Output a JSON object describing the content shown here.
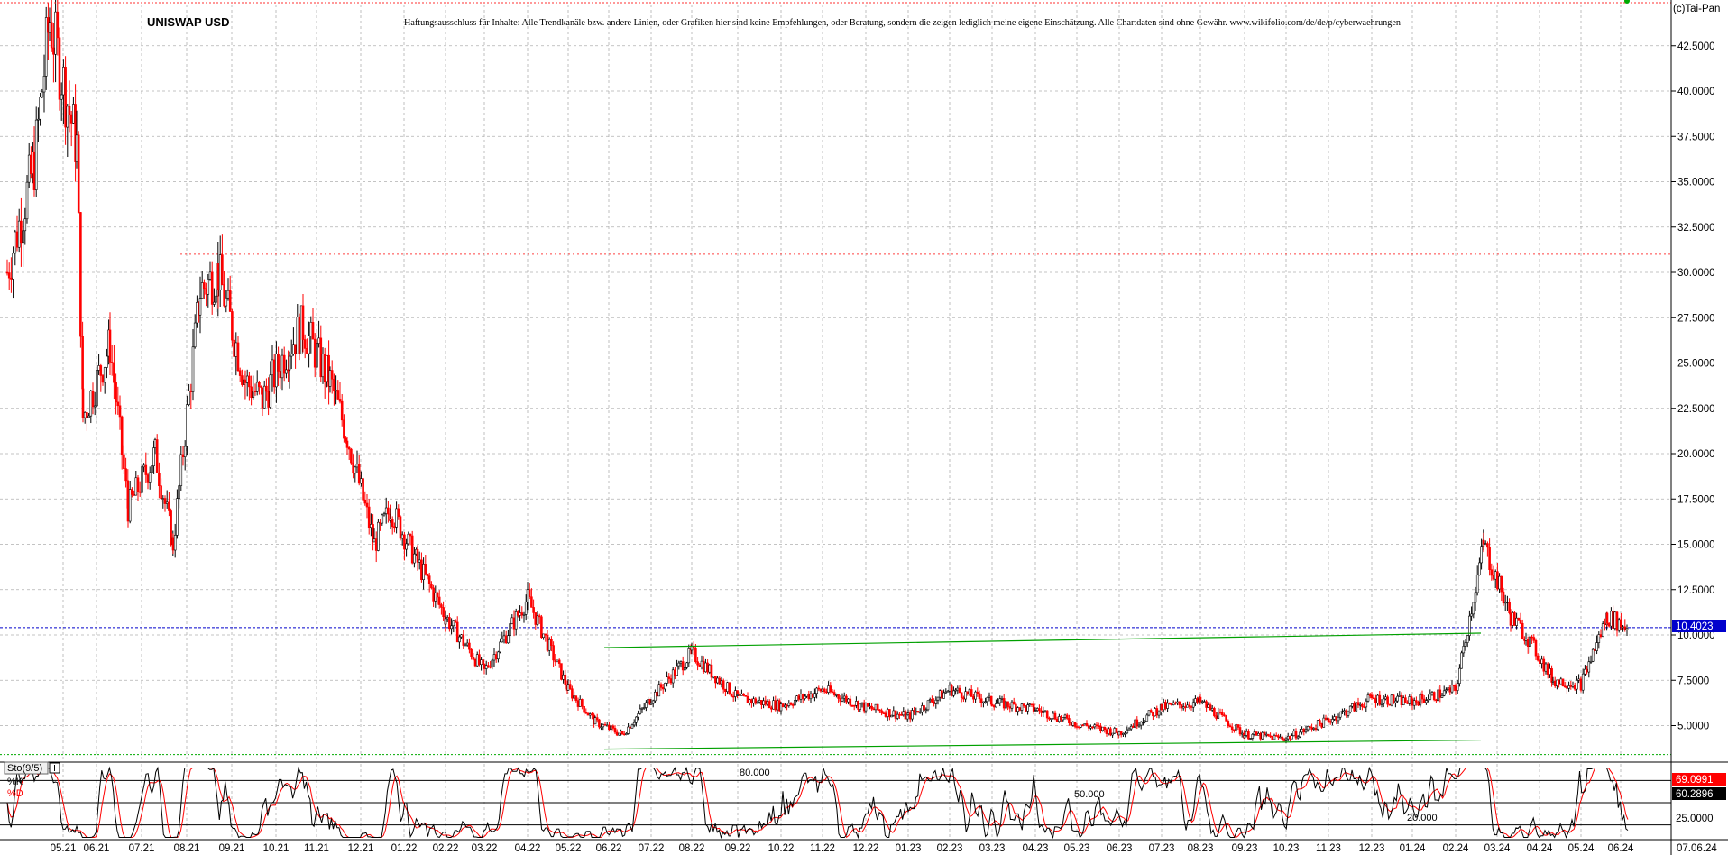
{
  "header": {
    "title": "UNISWAP USD",
    "disclaimer": "Haftungsausschluss für Inhalte: Alle Trendkanäle bzw. andere Linien, oder Grafiken hier sind keine Empfehlungen, oder Beratung, sondern die zeigen lediglich meine eigene Einschätzung. Alle Chartdaten sind ohne Gewähr.  www.wikifolio.com/de/de/p/cyberwaehrungen",
    "copyright": "(c)Tai-Pan"
  },
  "colors": {
    "up_candle": "#000000",
    "down_candle": "#ff0000",
    "trend_lines": "#00a000",
    "last_price_line": "#0000cc",
    "resistance_line": "#ff4040",
    "support_line": "#00aa00",
    "k_line": "#000000",
    "d_line": "#ff0000",
    "grid": "#b0b0b0",
    "k_badge": "#ff0000",
    "d_badge": "#000000"
  },
  "chart_data": [
    {
      "type": "candlestick",
      "title": "UNISWAP USD",
      "y_axis": {
        "side": "right",
        "range": [
          3.0,
          44.5
        ],
        "ticks": [
          "42.5000",
          "40.0000",
          "37.5000",
          "35.0000",
          "32.5000",
          "30.0000",
          "27.5000",
          "25.0000",
          "22.5000",
          "20.0000",
          "17.5000",
          "15.0000",
          "12.5000",
          "10.0000",
          "7.5000",
          "5.0000"
        ]
      },
      "x_axis": {
        "labels": [
          "05.21",
          "06.21",
          "07.21",
          "08.21",
          "09.21",
          "10.21",
          "11.21",
          "12.21",
          "01.22",
          "02.22",
          "03.22",
          "04.22",
          "05.22",
          "06.22",
          "07.22",
          "08.22",
          "09.22",
          "10.22",
          "11.22",
          "12.22",
          "01.23",
          "02.23",
          "03.23",
          "04.23",
          "05.23",
          "06.23",
          "07.23",
          "08.23",
          "09.23",
          "10.23",
          "11.23",
          "12.23",
          "01.24",
          "02.24",
          "03.24",
          "04.24",
          "05.24",
          "06.24"
        ],
        "last_date": "07.06.24"
      },
      "last_price": "10.4023",
      "price_path": [
        [
          "04.21",
          30
        ],
        [
          "04.21",
          36
        ],
        [
          "05.21",
          44
        ],
        [
          "05.21",
          37
        ],
        [
          "06.21",
          22
        ],
        [
          "06.21",
          26
        ],
        [
          "07.21",
          17
        ],
        [
          "07.21",
          20
        ],
        [
          "08.21",
          15
        ],
        [
          "08.21",
          29
        ],
        [
          "09.21",
          30
        ],
        [
          "09.21",
          24
        ],
        [
          "10.21",
          23
        ],
        [
          "10.21",
          26
        ],
        [
          "11.21",
          27
        ],
        [
          "11.21",
          24
        ],
        [
          "12.21",
          21
        ],
        [
          "12.21",
          15
        ],
        [
          "01.22",
          17
        ],
        [
          "01.22",
          14
        ],
        [
          "02.22",
          11
        ],
        [
          "03.22",
          8
        ],
        [
          "04.22",
          12
        ],
        [
          "05.22",
          7
        ],
        [
          "06.22",
          5.2
        ],
        [
          "06.22",
          4.5
        ],
        [
          "07.22",
          6.5
        ],
        [
          "08.22",
          9
        ],
        [
          "09.22",
          6.5
        ],
        [
          "10.22",
          6.1
        ],
        [
          "11.22",
          7
        ],
        [
          "12.22",
          6
        ],
        [
          "01.23",
          5.5
        ],
        [
          "02.23",
          7
        ],
        [
          "03.23",
          6.3
        ],
        [
          "04.23",
          5.9
        ],
        [
          "05.23",
          5.1
        ],
        [
          "06.23",
          4.6
        ],
        [
          "07.23",
          6
        ],
        [
          "08.23",
          6.3
        ],
        [
          "09.23",
          4.5
        ],
        [
          "10.23",
          4.3
        ],
        [
          "11.23",
          5.3
        ],
        [
          "12.23",
          6.5
        ],
        [
          "01.24",
          6.3
        ],
        [
          "02.24",
          7
        ],
        [
          "03.24",
          15
        ],
        [
          "03.24",
          11
        ],
        [
          "04.24",
          10
        ],
        [
          "04.24",
          7.5
        ],
        [
          "05.24",
          7.3
        ],
        [
          "06.24",
          11
        ],
        [
          "06.24",
          10.4
        ]
      ],
      "trend_lines": [
        {
          "from": [
            "06.22",
            9.3
          ],
          "to": [
            "02.24",
            10.1
          ]
        },
        {
          "from": [
            "06.22",
            3.7
          ],
          "to": [
            "02.24",
            4.2
          ]
        }
      ],
      "horizontal_lines": [
        {
          "value": 31.0,
          "style": "dotted-red"
        },
        {
          "value": 10.4023,
          "style": "dashed-blue"
        },
        {
          "value": 3.4,
          "style": "dotted-green"
        }
      ]
    },
    {
      "type": "line",
      "indicator": "Sto(9/5)",
      "series": [
        {
          "name": "%K",
          "last_value": "69.0991"
        },
        {
          "name": "%D",
          "last_value": "60.2896"
        }
      ],
      "levels": [
        "80.000",
        "50.000",
        "20.000"
      ],
      "y_ticks": [
        "25.0000"
      ],
      "range": [
        0,
        100
      ]
    }
  ]
}
